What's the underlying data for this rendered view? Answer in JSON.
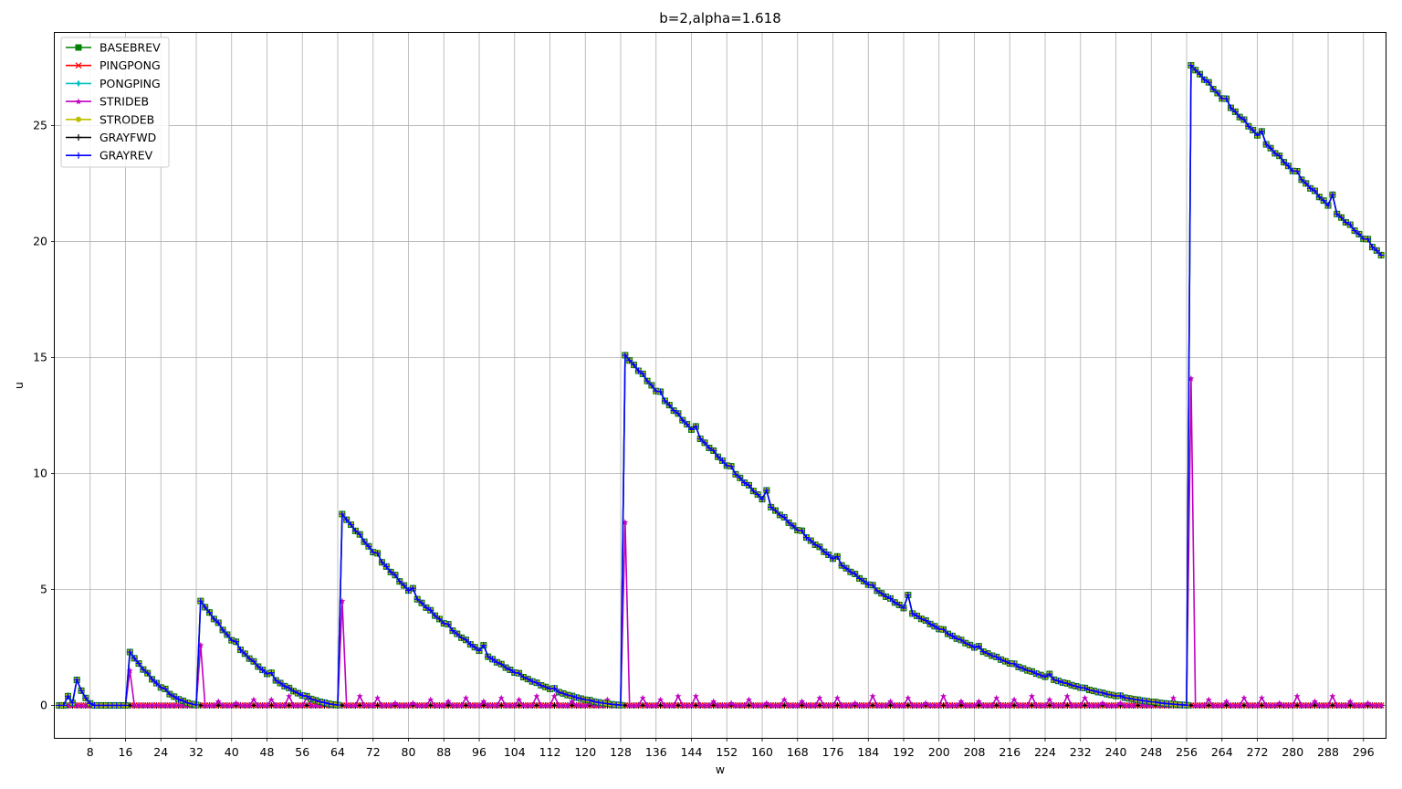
{
  "chart_data": {
    "type": "line",
    "title": "b=2,alpha=1.618",
    "xlabel": "w",
    "ylabel": "u",
    "xlim": [
      0,
      301
    ],
    "ylim": [
      -1.4,
      29
    ],
    "xticks": [
      8,
      16,
      24,
      32,
      40,
      48,
      56,
      64,
      72,
      80,
      88,
      96,
      104,
      112,
      120,
      128,
      136,
      144,
      152,
      160,
      168,
      176,
      184,
      192,
      200,
      208,
      216,
      224,
      232,
      240,
      248,
      256,
      264,
      272,
      280,
      288,
      296
    ],
    "yticks": [
      0,
      5,
      10,
      15,
      20,
      25
    ],
    "grid": true,
    "legend_position": "upper-left",
    "x": [
      1,
      300
    ],
    "series": [
      {
        "name": "BASEBREV",
        "color": "#008000",
        "marker": "square"
      },
      {
        "name": "PINGPONG",
        "color": "#ff0000",
        "marker": "x"
      },
      {
        "name": "PONGPING",
        "color": "#00bfbf",
        "marker": "thin-diamond"
      },
      {
        "name": "STRIDEB",
        "color": "#bf00bf",
        "marker": "star"
      },
      {
        "name": "STRODEB",
        "color": "#bfbf00",
        "marker": "circle"
      },
      {
        "name": "GRAYFWD",
        "color": "#000000",
        "marker": "plus"
      },
      {
        "name": "GRAYREV",
        "color": "#0000ff",
        "marker": "plus"
      }
    ],
    "bitrev_peaks": [
      {
        "w": 3,
        "u": 0.4
      },
      {
        "w": 5,
        "u": 1.1
      },
      {
        "w": 17,
        "u": 2.3
      },
      {
        "w": 33,
        "u": 4.5
      },
      {
        "w": 65,
        "u": 8.25
      },
      {
        "w": 129,
        "u": 15.1
      },
      {
        "w": 257,
        "u": 27.6
      }
    ],
    "strideb_peaks": [
      {
        "w": 17,
        "u": 1.5
      },
      {
        "w": 33,
        "u": 2.6
      },
      {
        "w": 65,
        "u": 4.5
      },
      {
        "w": 129,
        "u": 7.9
      },
      {
        "w": 257,
        "u": 14.1
      }
    ]
  }
}
